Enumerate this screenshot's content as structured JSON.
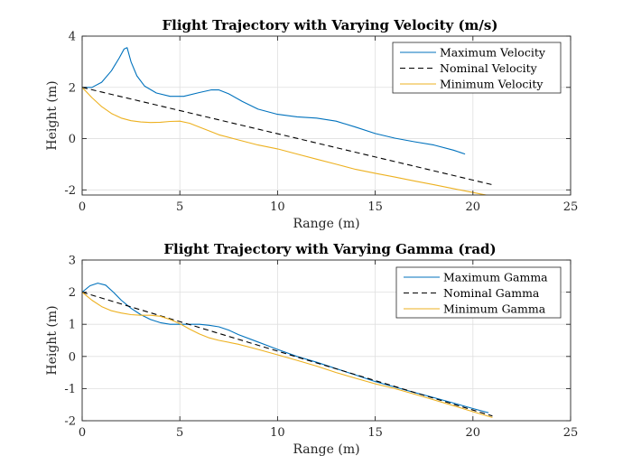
{
  "chart_data": [
    {
      "type": "line",
      "title": "Flight Trajectory with Varying Velocity (m/s)",
      "xlabel": "Range (m)",
      "ylabel": "Height (m)",
      "xlim": [
        0,
        25
      ],
      "ylim": [
        -2.2,
        4
      ],
      "xticks": [
        0,
        5,
        10,
        15,
        20,
        25
      ],
      "yticks": [
        -2,
        0,
        2,
        4
      ],
      "grid": true,
      "legend_position": "top-right",
      "series": [
        {
          "name": "Maximum Velocity",
          "color": "#0072BD",
          "dash": "solid",
          "x": [
            0,
            0.5,
            1.0,
            1.5,
            1.9,
            2.15,
            2.3,
            2.5,
            2.8,
            3.2,
            3.8,
            4.5,
            5.2,
            6.0,
            6.6,
            7.0,
            7.5,
            8.2,
            9.0,
            10.0,
            11.0,
            12.0,
            13.0,
            14.0,
            15.0,
            16.0,
            17.0,
            18.0,
            19.0,
            19.6
          ],
          "y": [
            2.0,
            2.0,
            2.2,
            2.65,
            3.15,
            3.5,
            3.55,
            3.0,
            2.45,
            2.05,
            1.78,
            1.65,
            1.65,
            1.8,
            1.9,
            1.9,
            1.75,
            1.45,
            1.15,
            0.95,
            0.85,
            0.8,
            0.68,
            0.45,
            0.2,
            0.02,
            -0.12,
            -0.25,
            -0.45,
            -0.6
          ]
        },
        {
          "name": "Nominal Velocity",
          "color": "#000000",
          "dash": "dashed",
          "x": [
            0,
            21
          ],
          "y": [
            2.0,
            -1.8
          ]
        },
        {
          "name": "Minimum Velocity",
          "color": "#EDB120",
          "dash": "solid",
          "x": [
            0,
            0.5,
            1.0,
            1.5,
            2.0,
            2.5,
            3.0,
            3.5,
            4.0,
            4.5,
            5.0,
            5.5,
            6.0,
            6.5,
            7.0,
            8.0,
            9.0,
            10.0,
            11.0,
            12.0,
            13.0,
            14.0,
            15.0,
            16.0,
            17.0,
            18.0,
            19.0,
            20.0,
            21.0,
            21.2
          ],
          "y": [
            2.0,
            1.6,
            1.25,
            0.98,
            0.8,
            0.7,
            0.65,
            0.63,
            0.64,
            0.67,
            0.68,
            0.6,
            0.45,
            0.3,
            0.15,
            -0.05,
            -0.25,
            -0.4,
            -0.6,
            -0.8,
            -1.0,
            -1.2,
            -1.35,
            -1.5,
            -1.65,
            -1.8,
            -1.95,
            -2.1,
            -2.25,
            -2.3
          ]
        }
      ]
    },
    {
      "type": "line",
      "title": "Flight Trajectory with Varying Gamma (rad)",
      "xlabel": "Range (m)",
      "ylabel": "Height (m)",
      "xlim": [
        0,
        25
      ],
      "ylim": [
        -2,
        3
      ],
      "xticks": [
        0,
        5,
        10,
        15,
        20,
        25
      ],
      "yticks": [
        -2,
        -1,
        0,
        1,
        2,
        3
      ],
      "grid": true,
      "legend_position": "top-right",
      "series": [
        {
          "name": "Maximum Gamma",
          "color": "#0072BD",
          "dash": "solid",
          "x": [
            0,
            0.4,
            0.8,
            1.2,
            1.6,
            2.0,
            2.5,
            3.0,
            3.5,
            4.0,
            4.5,
            5.0,
            5.5,
            6.0,
            6.5,
            7.0,
            7.5,
            8.0,
            9.0,
            10.0,
            11.0,
            12.0,
            13.0,
            14.0,
            15.0,
            16.0,
            17.0,
            18.0,
            19.0,
            20.0,
            20.8
          ],
          "y": [
            2.0,
            2.2,
            2.28,
            2.22,
            2.0,
            1.75,
            1.5,
            1.3,
            1.15,
            1.05,
            1.0,
            1.0,
            1.0,
            1.0,
            0.97,
            0.92,
            0.82,
            0.68,
            0.45,
            0.22,
            0.0,
            -0.18,
            -0.38,
            -0.58,
            -0.78,
            -0.95,
            -1.12,
            -1.28,
            -1.45,
            -1.62,
            -1.75
          ]
        },
        {
          "name": "Nominal Gamma",
          "color": "#000000",
          "dash": "dashed",
          "x": [
            0,
            21
          ],
          "y": [
            2.0,
            -1.85
          ]
        },
        {
          "name": "Minimum Gamma",
          "color": "#EDB120",
          "dash": "solid",
          "x": [
            0,
            0.5,
            1.0,
            1.5,
            2.0,
            2.5,
            3.0,
            3.5,
            4.0,
            4.5,
            5.0,
            5.5,
            6.0,
            6.5,
            7.0,
            8.0,
            9.0,
            10.0,
            11.0,
            12.0,
            13.0,
            14.0,
            15.0,
            16.0,
            17.0,
            18.0,
            19.0,
            20.0,
            21.0
          ],
          "y": [
            2.0,
            1.75,
            1.55,
            1.42,
            1.35,
            1.3,
            1.28,
            1.28,
            1.25,
            1.15,
            1.02,
            0.85,
            0.7,
            0.58,
            0.5,
            0.38,
            0.22,
            0.05,
            -0.12,
            -0.3,
            -0.5,
            -0.68,
            -0.85,
            -1.0,
            -1.17,
            -1.35,
            -1.53,
            -1.72,
            -1.9
          ]
        }
      ]
    }
  ]
}
